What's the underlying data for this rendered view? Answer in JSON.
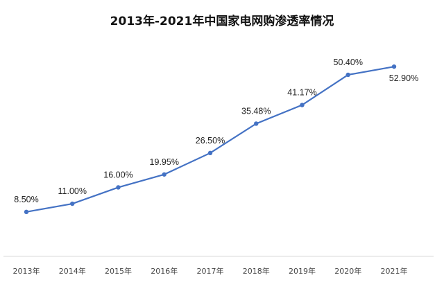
{
  "chart_data": {
    "type": "line",
    "title": "2013年-2021年中国家电网购渗透率情况",
    "xlabel": "",
    "ylabel": "",
    "categories": [
      "2013年",
      "2014年",
      "2015年",
      "2016年",
      "2017年",
      "2018年",
      "2019年",
      "2020年",
      "2021年"
    ],
    "series": [
      {
        "values": [
          8.5,
          11.0,
          16.0,
          19.95,
          26.5,
          35.48,
          41.17,
          50.4,
          52.9
        ],
        "labels": [
          "8.50%",
          "11.00%",
          "16.00%",
          "19.95%",
          "26.50%",
          "35.48%",
          "41.17%",
          "50.40%",
          "52.90%"
        ],
        "color": "#4472C4"
      }
    ],
    "grid": false,
    "legend": "none"
  }
}
